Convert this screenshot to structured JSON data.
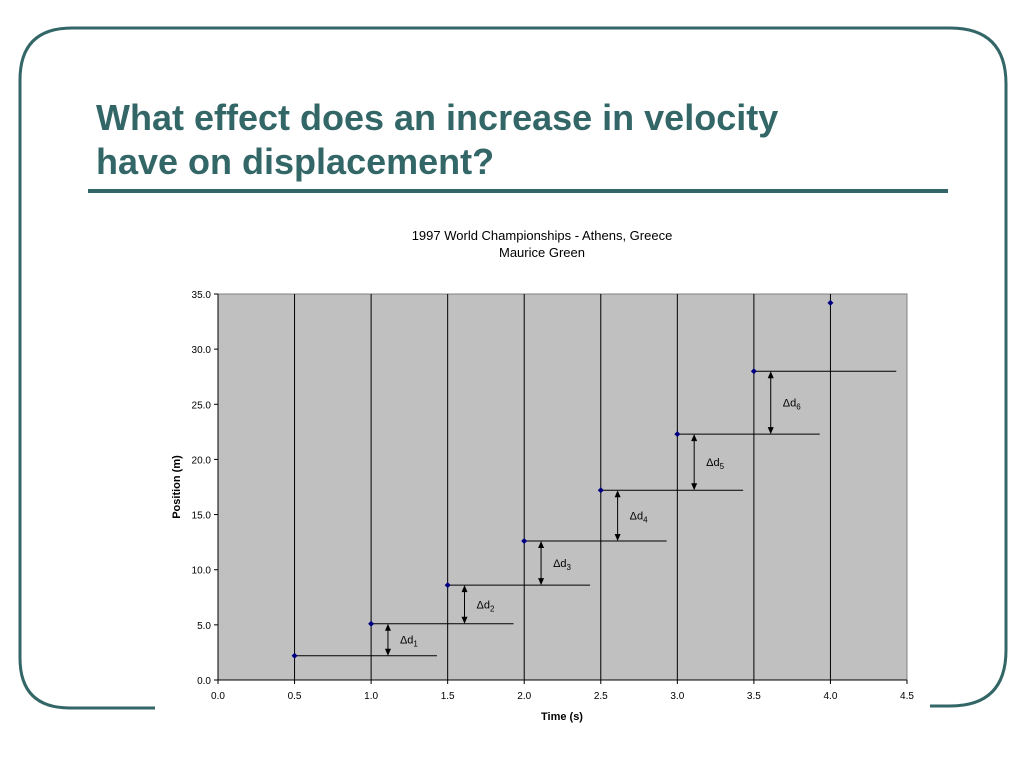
{
  "slide": {
    "title_line1": "What effect does an increase in velocity",
    "title_line2": "have on displacement?",
    "accent_color": "#336666"
  },
  "chart_data": {
    "type": "scatter",
    "title": "1997 World Championships - Athens, Greece",
    "subtitle": "Maurice Green",
    "xlabel": "Time (s)",
    "ylabel": "Position (m)",
    "xlim": [
      0,
      4.5
    ],
    "ylim": [
      0,
      35
    ],
    "x_ticks": [
      "0.0",
      "0.5",
      "1.0",
      "1.5",
      "2.0",
      "2.5",
      "3.0",
      "3.5",
      "4.0",
      "4.5"
    ],
    "y_ticks": [
      "0.0",
      "5.0",
      "10.0",
      "15.0",
      "20.0",
      "25.0",
      "30.0",
      "35.0"
    ],
    "grid": "vertical",
    "plot_background": "#c0c0c0",
    "marker_color": "#000080",
    "points": [
      {
        "x": 0.5,
        "y": 2.2
      },
      {
        "x": 1.0,
        "y": 5.1
      },
      {
        "x": 1.5,
        "y": 8.6
      },
      {
        "x": 2.0,
        "y": 12.6
      },
      {
        "x": 2.5,
        "y": 17.2
      },
      {
        "x": 3.0,
        "y": 22.3
      },
      {
        "x": 3.5,
        "y": 28.0
      },
      {
        "x": 4.0,
        "y": 34.2
      }
    ],
    "displacements": [
      {
        "label": "Δd",
        "sub": "1",
        "x": 1.11,
        "y_from": 2.2,
        "y_to": 5.1
      },
      {
        "label": "Δd",
        "sub": "2",
        "x": 1.61,
        "y_from": 5.1,
        "y_to": 8.6
      },
      {
        "label": "Δd",
        "sub": "3",
        "x": 2.11,
        "y_from": 8.6,
        "y_to": 12.6
      },
      {
        "label": "Δd",
        "sub": "4",
        "x": 2.61,
        "y_from": 12.6,
        "y_to": 17.2
      },
      {
        "label": "Δd",
        "sub": "5",
        "x": 3.11,
        "y_from": 17.2,
        "y_to": 22.3
      },
      {
        "label": "Δd",
        "sub": "6",
        "x": 3.61,
        "y_from": 22.3,
        "y_to": 28.0
      }
    ],
    "horizontal_guides": [
      {
        "y": 2.2,
        "x_from": 0.5,
        "x_to": 1.43
      },
      {
        "y": 5.1,
        "x_from": 1.0,
        "x_to": 1.93
      },
      {
        "y": 8.6,
        "x_from": 1.5,
        "x_to": 2.43
      },
      {
        "y": 12.6,
        "x_from": 2.0,
        "x_to": 2.93
      },
      {
        "y": 17.2,
        "x_from": 2.5,
        "x_to": 3.43
      },
      {
        "y": 22.3,
        "x_from": 3.0,
        "x_to": 3.93
      },
      {
        "y": 28.0,
        "x_from": 3.5,
        "x_to": 4.43
      }
    ]
  }
}
